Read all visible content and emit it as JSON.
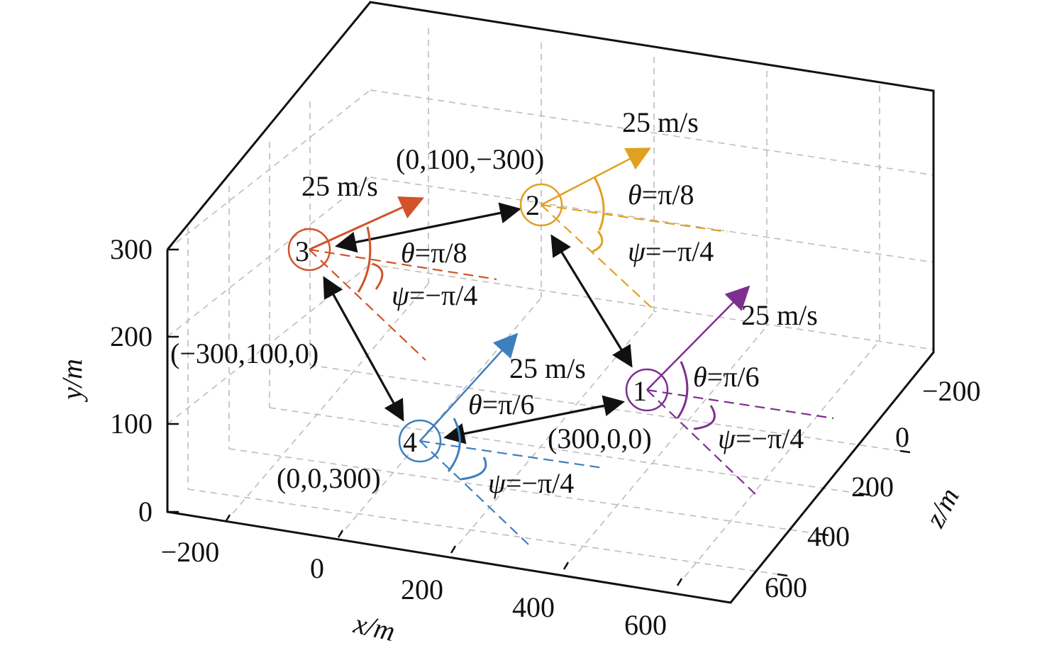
{
  "axes": {
    "x_label": "x/m",
    "y_label": "y/m",
    "z_label": "z/m",
    "x_ticks": [
      "−200",
      "0",
      "200",
      "400",
      "600"
    ],
    "y_ticks": [
      "0",
      "100",
      "200",
      "300"
    ],
    "z_ticks": [
      "−200",
      "0",
      "200",
      "400",
      "600"
    ]
  },
  "agents": [
    {
      "id": "1",
      "position": "(300,0,0)",
      "speed": "25 m/s",
      "theta": "=π/6",
      "psi": "=−π/4",
      "theta_symbol": "θ",
      "psi_symbol": "ψ",
      "color": "#7e2f8e"
    },
    {
      "id": "2",
      "position": "(0,100,−300)",
      "speed": "25 m/s",
      "theta": "=π/8",
      "psi": "=−π/4",
      "theta_symbol": "θ",
      "psi_symbol": "ψ",
      "color": "#e0a020"
    },
    {
      "id": "3",
      "position": "(−300,100,0)",
      "speed": "25 m/s",
      "theta": "=π/8",
      "psi": "=−π/4",
      "theta_symbol": "θ",
      "psi_symbol": "ψ",
      "color": "#d2522a"
    },
    {
      "id": "4",
      "position": "(0,0,300)",
      "speed": "25 m/s",
      "theta": "=π/6",
      "psi": "=−π/4",
      "theta_symbol": "θ",
      "psi_symbol": "ψ",
      "color": "#3e7fbd"
    }
  ],
  "links": [
    "3-2",
    "2-1",
    "3-4",
    "4-1"
  ]
}
